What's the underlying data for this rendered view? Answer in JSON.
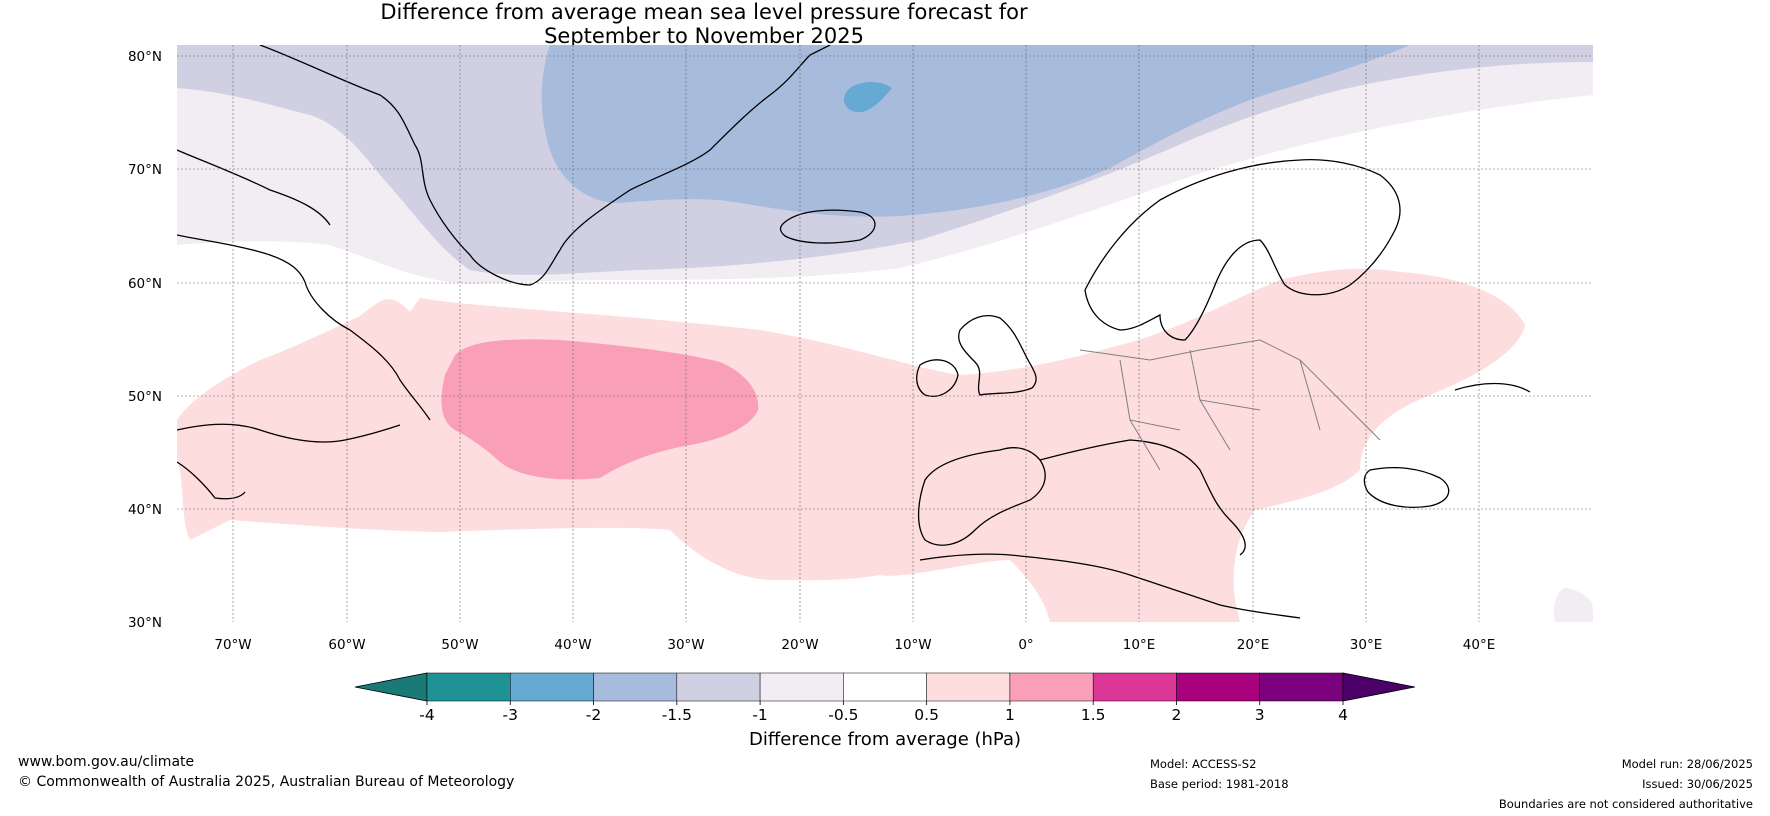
{
  "title": {
    "line1": "Difference from average mean sea level pressure forecast for",
    "line2": "September to November 2025"
  },
  "map": {
    "lat_labels": [
      "80°N",
      "70°N",
      "60°N",
      "50°N",
      "40°N",
      "30°N"
    ],
    "lon_labels": [
      "70°W",
      "60°W",
      "50°W",
      "40°W",
      "30°W",
      "20°W",
      "10°W",
      "0°",
      "10°E",
      "20°E",
      "30°E",
      "40°E"
    ],
    "extent": {
      "lon_min": -75,
      "lon_max": 50,
      "lat_min": 30,
      "lat_max": 81
    },
    "land_outline_color": "#000000",
    "border_color": "#808080"
  },
  "colorbar": {
    "title": "Difference from average (hPa)",
    "tick_labels": [
      "-4",
      "-3",
      "-2",
      "-1.5",
      "-1",
      "-0.5",
      "0.5",
      "1",
      "1.5",
      "2",
      "3",
      "4"
    ],
    "colors": [
      "#1a7a78",
      "#1f9296",
      "#66a9d2",
      "#a7bbdc",
      "#d1d0e3",
      "#f2ecf3",
      "#ffffff",
      "#fdddde",
      "#fa9fb8",
      "#dc3797",
      "#a9017d",
      "#7b007d",
      "#4b006a"
    ]
  },
  "footer": {
    "website": "www.bom.gov.au/climate",
    "copyright": "© Commonwealth of Australia 2025, Australian Bureau of Meteorology",
    "model": "Model: ACCESS-S2",
    "base_period": "Base period: 1981-2018",
    "model_run": "Model run: 28/06/2025",
    "issued": "Issued: 30/06/2025",
    "disclaimer": "Boundaries are not considered authoritative"
  }
}
